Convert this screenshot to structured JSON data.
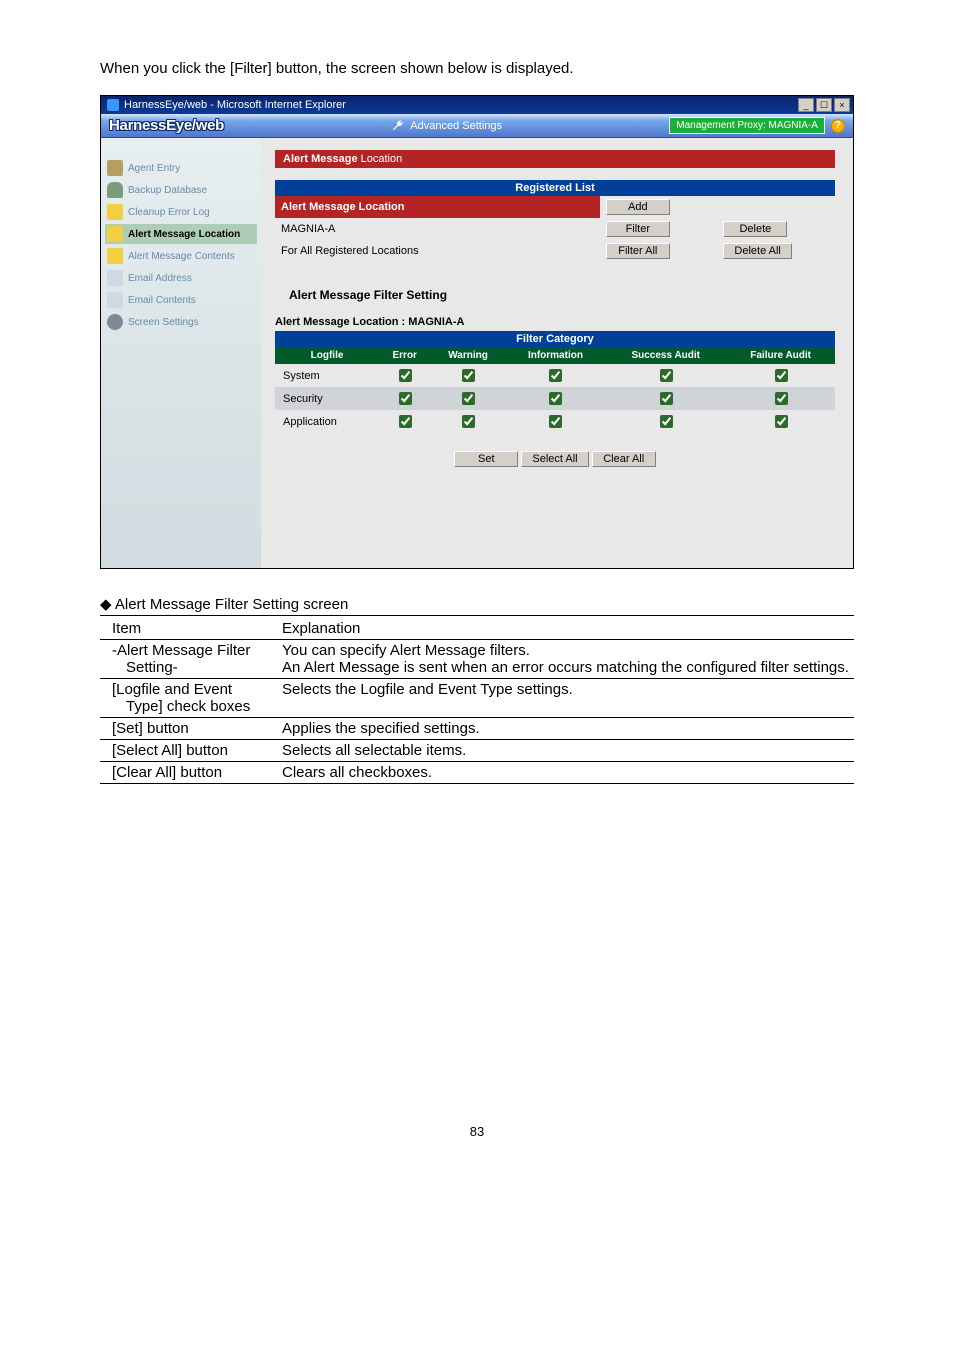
{
  "intro": "When you click the [Filter] button, the screen shown below is displayed.",
  "window": {
    "title": "HarnessEye/web - Microsoft Internet Explorer",
    "app_title": "HarnessEye/web",
    "adv_label": "Advanced Settings",
    "proxy_label": "Management Proxy: MAGNIA-A",
    "help_glyph": "?"
  },
  "sidebar": {
    "items": [
      {
        "label": "Agent Entry",
        "icon": "folder",
        "active": false
      },
      {
        "label": "Backup Database",
        "icon": "db",
        "active": false
      },
      {
        "label": "Cleanup Error Log",
        "icon": "warn",
        "active": false
      },
      {
        "label": "Alert Message Location",
        "icon": "warn",
        "active": true
      },
      {
        "label": "Alert Message Contents",
        "icon": "warn",
        "active": false
      },
      {
        "label": "Email Address",
        "icon": "mail",
        "active": false
      },
      {
        "label": "Email Contents",
        "icon": "mail",
        "active": false
      },
      {
        "label": "Screen Settings",
        "icon": "gear",
        "active": false
      }
    ]
  },
  "main": {
    "red_header_bold": "Alert Message",
    "red_header_rest": " Location",
    "reg_list_label": "Registered List",
    "rows": [
      {
        "label": "Alert Message Location",
        "btn1": "Add",
        "btn2": ""
      },
      {
        "label": "MAGNIA-A",
        "btn1": "Filter",
        "btn2": "Delete"
      },
      {
        "label": "For All Registered Locations",
        "btn1": "Filter All",
        "btn2": "Delete All"
      }
    ],
    "filter_title": "Alert Message Filter Setting",
    "loc_line": "Alert Message Location : MAGNIA-A",
    "cat_header": "Filter Category",
    "cat_columns": [
      "Logfile",
      "Error",
      "Warning",
      "Information",
      "Success Audit",
      "Failure Audit"
    ],
    "cat_rows": [
      {
        "name": "System"
      },
      {
        "name": "Security"
      },
      {
        "name": "Application"
      }
    ],
    "btns": {
      "set": "Set",
      "select_all": "Select All",
      "clear_all": "Clear All"
    }
  },
  "subhead": "◆ Alert Message Filter Setting screen",
  "exp": {
    "head_item": "Item",
    "head_exp": "Explanation",
    "rows": [
      {
        "item_lines": [
          "-Alert Message Filter",
          "Setting-"
        ],
        "exp": "You can specify Alert Message filters.\nAn Alert Message is sent when an error occurs matching the configured filter settings."
      },
      {
        "item_lines": [
          "[Logfile and Event",
          "Type] check boxes"
        ],
        "exp": "Selects the Logfile and Event Type settings."
      },
      {
        "item_lines": [
          "[Set] button"
        ],
        "exp": "Applies the specified settings."
      },
      {
        "item_lines": [
          "[Select All] button"
        ],
        "exp": "Selects all selectable items."
      },
      {
        "item_lines": [
          "[Clear All] button"
        ],
        "exp": "Clears all checkboxes."
      }
    ]
  },
  "page_number": "83"
}
